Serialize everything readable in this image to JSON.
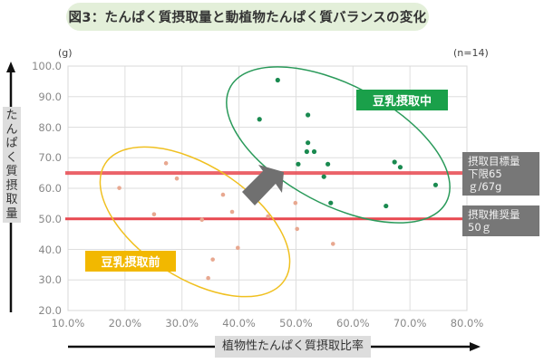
{
  "title": "図3：たんぱく質摂取量と動植物たんぱく質バランスの変化",
  "unit_label": "(g)",
  "sample_size": "(n=14)",
  "y_axis_label": "たんぱく質摂取量",
  "x_axis_label": "植物性たんぱく質摂取比率",
  "y_ticks": [
    "100.0",
    "90.0",
    "80.0",
    "70.0",
    "60.0",
    "50.0",
    "40.0",
    "30.0",
    "20.0"
  ],
  "x_ticks": [
    "10.0%",
    "20.0%",
    "30.0%",
    "40.0%",
    "50.0%",
    "60.0%",
    "70.0%",
    "80.0%"
  ],
  "group_labels": {
    "after": "豆乳摂取中",
    "before": "豆乳摂取前"
  },
  "reference_lines": {
    "target": {
      "line1": "摂取目標量",
      "line2": "下限65ｇ/67g",
      "value": 65
    },
    "recommended": {
      "line1": "摂取推奨量",
      "line2": "50ｇ",
      "value": 50
    }
  },
  "colors": {
    "after": "#1a8a50",
    "before": "#e8a890",
    "reference": "#e84850",
    "ellipse_after": "#2a9a5a",
    "ellipse_before": "#f0c020",
    "arrow": "#707070"
  },
  "chart_data": {
    "type": "scatter",
    "title": "図3：たんぱく質摂取量と動植物たんぱく質バランスの変化",
    "xlabel": "植物性たんぱく質摂取比率",
    "ylabel": "たんぱく質摂取量 (g)",
    "xlim": [
      10,
      80
    ],
    "ylim": [
      20,
      100
    ],
    "grid": true,
    "series": [
      {
        "name": "豆乳摂取前",
        "points": [
          [
            27.2,
            68.2
          ],
          [
            29.1,
            63.2
          ],
          [
            19.0,
            60.1
          ],
          [
            37.2,
            57.9
          ],
          [
            25.1,
            51.5
          ],
          [
            38.8,
            52.3
          ],
          [
            33.5,
            49.7
          ],
          [
            45.1,
            50.8
          ],
          [
            49.9,
            55.2
          ],
          [
            50.2,
            46.7
          ],
          [
            39.8,
            40.5
          ],
          [
            56.5,
            41.8
          ],
          [
            35.4,
            36.7
          ],
          [
            34.6,
            30.6
          ]
        ]
      },
      {
        "name": "豆乳摂取中",
        "points": [
          [
            46.8,
            95.4
          ],
          [
            43.6,
            82.6
          ],
          [
            52.1,
            84.0
          ],
          [
            52.1,
            74.9
          ],
          [
            51.9,
            72.0
          ],
          [
            53.2,
            72.0
          ],
          [
            50.4,
            67.9
          ],
          [
            55.6,
            67.9
          ],
          [
            54.9,
            63.8
          ],
          [
            56.1,
            55.2
          ],
          [
            67.3,
            68.6
          ],
          [
            68.3,
            66.9
          ],
          [
            74.5,
            61.1
          ],
          [
            65.8,
            54.2
          ]
        ]
      }
    ],
    "hlines": [
      {
        "y": 65,
        "label": "摂取目標量 下限65ｇ/67g"
      },
      {
        "y": 50,
        "label": "摂取推奨量 50ｇ"
      }
    ],
    "annotations": [
      "豆乳摂取前",
      "豆乳摂取中",
      "(n=14)"
    ]
  }
}
